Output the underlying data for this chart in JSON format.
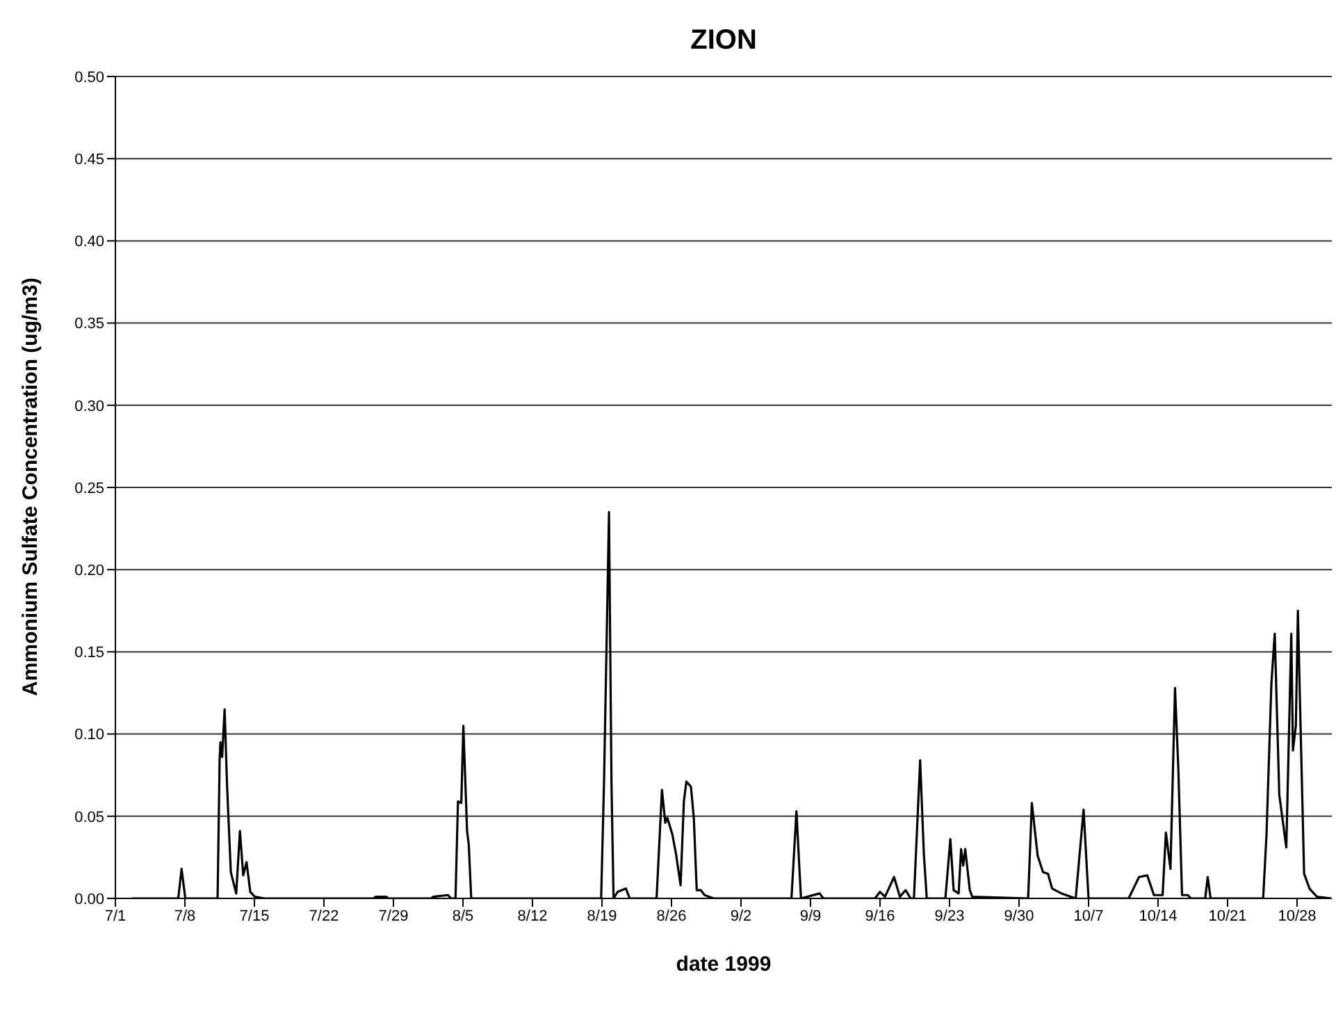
{
  "chart_data": {
    "type": "line",
    "title": "ZION",
    "xlabel": "date 1999",
    "ylabel": "Ammonium Sulfate Concentration (ug/m3)",
    "x": [
      "1999-07-02T17:00",
      "1999-07-07T08:00",
      "1999-07-07T16:00",
      "1999-07-08T01:00",
      "1999-07-11T07:00",
      "1999-07-11T12:00",
      "1999-07-11T14:00",
      "1999-07-11T18:00",
      "1999-07-12T00:00",
      "1999-07-12T06:00",
      "1999-07-12T15:00",
      "1999-07-13T04:00",
      "1999-07-13T13:00",
      "1999-07-13T21:00",
      "1999-07-14T05:00",
      "1999-07-14T14:00",
      "1999-07-15T01:00",
      "1999-07-16T00:00",
      "1999-07-27T00:00",
      "1999-07-27T05:00",
      "1999-07-28T07:00",
      "1999-07-28T12:00",
      "1999-08-01T19:00",
      "1999-08-02T00:00",
      "1999-08-03T12:00",
      "1999-08-03T19:00",
      "1999-08-04T06:00",
      "1999-08-04T12:00",
      "1999-08-04T20:00",
      "1999-08-05T01:00",
      "1999-08-05T10:00",
      "1999-08-05T14:00",
      "1999-08-05T20:00",
      "1999-08-18T22:00",
      "1999-08-19T05:00",
      "1999-08-19T17:00",
      "1999-08-19T23:00",
      "1999-08-20T04:00",
      "1999-08-20T14:00",
      "1999-08-21T10:00",
      "1999-08-21T19:00",
      "1999-08-24T12:00",
      "1999-08-25T01:00",
      "1999-08-25T09:00",
      "1999-08-25T14:00",
      "1999-08-26T02:00",
      "1999-08-26T11:00",
      "1999-08-26T22:00",
      "1999-08-27T06:00",
      "1999-08-27T12:00",
      "1999-08-27T23:00",
      "1999-08-28T06:00",
      "1999-08-28T13:00",
      "1999-08-28T23:00",
      "1999-08-29T08:00",
      "1999-08-30T06:00",
      "1999-09-07T02:00",
      "1999-09-07T14:00",
      "1999-09-08T01:00",
      "1999-09-09T22:00",
      "1999-09-10T07:00",
      "1999-09-15T12:00",
      "1999-09-16T00:00",
      "1999-09-16T12:00",
      "1999-09-17T10:00",
      "1999-09-18T00:00",
      "1999-09-18T14:00",
      "1999-09-19T02:00",
      "1999-09-19T10:00",
      "1999-09-20T01:00",
      "1999-09-20T10:00",
      "1999-09-20T17:00",
      "1999-09-22T14:00",
      "1999-09-23T02:00",
      "1999-09-23T10:00",
      "1999-09-23T22:00",
      "1999-09-24T04:00",
      "1999-09-24T09:00",
      "1999-09-24T14:00",
      "1999-09-25T01:00",
      "1999-09-25T07:00",
      "1999-09-30T22:00",
      "1999-10-01T07:00",
      "1999-10-01T21:00",
      "1999-10-02T10:00",
      "1999-10-02T22:00",
      "1999-10-03T08:00",
      "1999-10-04T07:00",
      "1999-10-05T17:00",
      "1999-10-06T12:00",
      "1999-10-07T00:00",
      "1999-10-11T01:00",
      "1999-10-12T02:00",
      "1999-10-12T22:00",
      "1999-10-13T14:00",
      "1999-10-14T11:00",
      "1999-10-14T19:00",
      "1999-10-15T06:00",
      "1999-10-15T17:00",
      "1999-10-16T01:00",
      "1999-10-16T10:00",
      "1999-10-17T00:00",
      "1999-10-17T07:00",
      "1999-10-18T18:00",
      "1999-10-19T00:00",
      "1999-10-19T07:00",
      "1999-10-24T14:00",
      "1999-10-24T22:00",
      "1999-10-25T10:00",
      "1999-10-25T18:00",
      "1999-10-26T05:00",
      "1999-10-26T22:00",
      "1999-10-27T10:00",
      "1999-10-27T14:00",
      "1999-10-27T21:00",
      "1999-10-28T02:00",
      "1999-10-28T07:00",
      "1999-10-28T17:00",
      "1999-10-29T06:00",
      "1999-10-30T00:00",
      "1999-10-31T10:00"
    ],
    "series": [
      {
        "color": "#000000",
        "values": [
          0,
          0,
          0.018,
          0,
          0,
          0.085,
          0.095,
          0.086,
          0.115,
          0.068,
          0.016,
          0.003,
          0.041,
          0.014,
          0.022,
          0.004,
          0.001,
          0,
          0,
          0.001,
          0.001,
          0,
          0,
          0.001,
          0.002,
          0,
          0,
          0.059,
          0.058,
          0.105,
          0.041,
          0.033,
          0,
          0,
          0.071,
          0.235,
          0.07,
          0,
          0.004,
          0.006,
          0,
          0,
          0.066,
          0.046,
          0.049,
          0.039,
          0.027,
          0.008,
          0.059,
          0.071,
          0.068,
          0.049,
          0.005,
          0.005,
          0.002,
          0,
          0,
          0.053,
          0,
          0.003,
          0,
          0,
          0.004,
          0.001,
          0.013,
          0.001,
          0.005,
          0,
          0,
          0.084,
          0.027,
          0,
          0,
          0.036,
          0.005,
          0.003,
          0.03,
          0.02,
          0.03,
          0.005,
          0.001,
          0,
          0.058,
          0.026,
          0.016,
          0.015,
          0.006,
          0.003,
          0,
          0.054,
          0,
          0,
          0.013,
          0.014,
          0.002,
          0.002,
          0.04,
          0.018,
          0.128,
          0.079,
          0.002,
          0.002,
          0,
          0,
          0.013,
          0,
          0,
          0.038,
          0.131,
          0.161,
          0.063,
          0.031,
          0.161,
          0.09,
          0.105,
          0.175,
          0.12,
          0.015,
          0.006,
          0.001,
          0
        ]
      }
    ],
    "xlim": [
      "1999-07-01",
      "1999-10-31T12:00"
    ],
    "xticks": [
      {
        "value": "1999-07-01",
        "label": "7/1"
      },
      {
        "value": "1999-07-08",
        "label": "7/8"
      },
      {
        "value": "1999-07-15",
        "label": "7/15"
      },
      {
        "value": "1999-07-22",
        "label": "7/22"
      },
      {
        "value": "1999-07-29",
        "label": "7/29"
      },
      {
        "value": "1999-08-05",
        "label": "8/5"
      },
      {
        "value": "1999-08-12",
        "label": "8/12"
      },
      {
        "value": "1999-08-19",
        "label": "8/19"
      },
      {
        "value": "1999-08-26",
        "label": "8/26"
      },
      {
        "value": "1999-09-02",
        "label": "9/2"
      },
      {
        "value": "1999-09-09",
        "label": "9/9"
      },
      {
        "value": "1999-09-16",
        "label": "9/16"
      },
      {
        "value": "1999-09-23",
        "label": "9/23"
      },
      {
        "value": "1999-09-30",
        "label": "9/30"
      },
      {
        "value": "1999-10-07",
        "label": "10/7"
      },
      {
        "value": "1999-10-14",
        "label": "10/14"
      },
      {
        "value": "1999-10-21",
        "label": "10/21"
      },
      {
        "value": "1999-10-28",
        "label": "10/28"
      }
    ],
    "ylim": [
      0,
      0.5
    ],
    "yticks": [
      {
        "value": 0,
        "label": "0.00"
      },
      {
        "value": 0.05,
        "label": "0.05"
      },
      {
        "value": 0.1,
        "label": "0.10"
      },
      {
        "value": 0.15,
        "label": "0.15"
      },
      {
        "value": 0.2,
        "label": "0.20"
      },
      {
        "value": 0.25,
        "label": "0.25"
      },
      {
        "value": 0.3,
        "label": "0.30"
      },
      {
        "value": 0.35,
        "label": "0.35"
      },
      {
        "value": 0.4,
        "label": "0.40"
      },
      {
        "value": 0.45,
        "label": "0.45"
      },
      {
        "value": 0.5,
        "label": "0.50"
      }
    ],
    "grid": "y",
    "line_style": "solid"
  }
}
